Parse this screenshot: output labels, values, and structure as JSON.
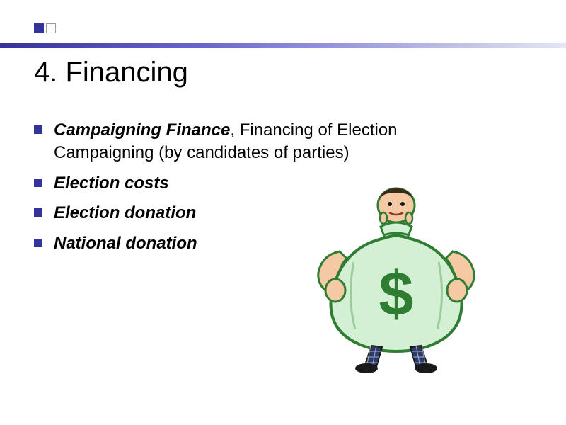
{
  "decoration": {
    "square1_fill": "#333399",
    "square1_border": "#333399",
    "square2_fill": "#ffffff",
    "square2_border": "#999999",
    "line_gradient_start": "#333399",
    "line_gradient_mid": "#6666cc",
    "line_gradient_end": "#e6e6f5"
  },
  "title": "4. Financing",
  "bullets": [
    {
      "bold": "Campaigning Finance",
      "rest": ", Financing of Election Campaigning (by candidates of parties)"
    },
    {
      "bold": "Election costs",
      "rest": ""
    },
    {
      "bold": "Election donation",
      "rest": ""
    },
    {
      "bold": "National donation",
      "rest": ""
    }
  ],
  "bullet_color": "#333399",
  "clipart": {
    "description": "money-bag-with-person",
    "bag_fill": "#d4f0d4",
    "bag_stroke": "#2e7d32",
    "dollar_color": "#2e7d32",
    "skin_color": "#f5c9a3",
    "hair_color": "#3a2a1a",
    "pants_color": "#2a3a6a",
    "shoe_color": "#1a1a1a"
  }
}
